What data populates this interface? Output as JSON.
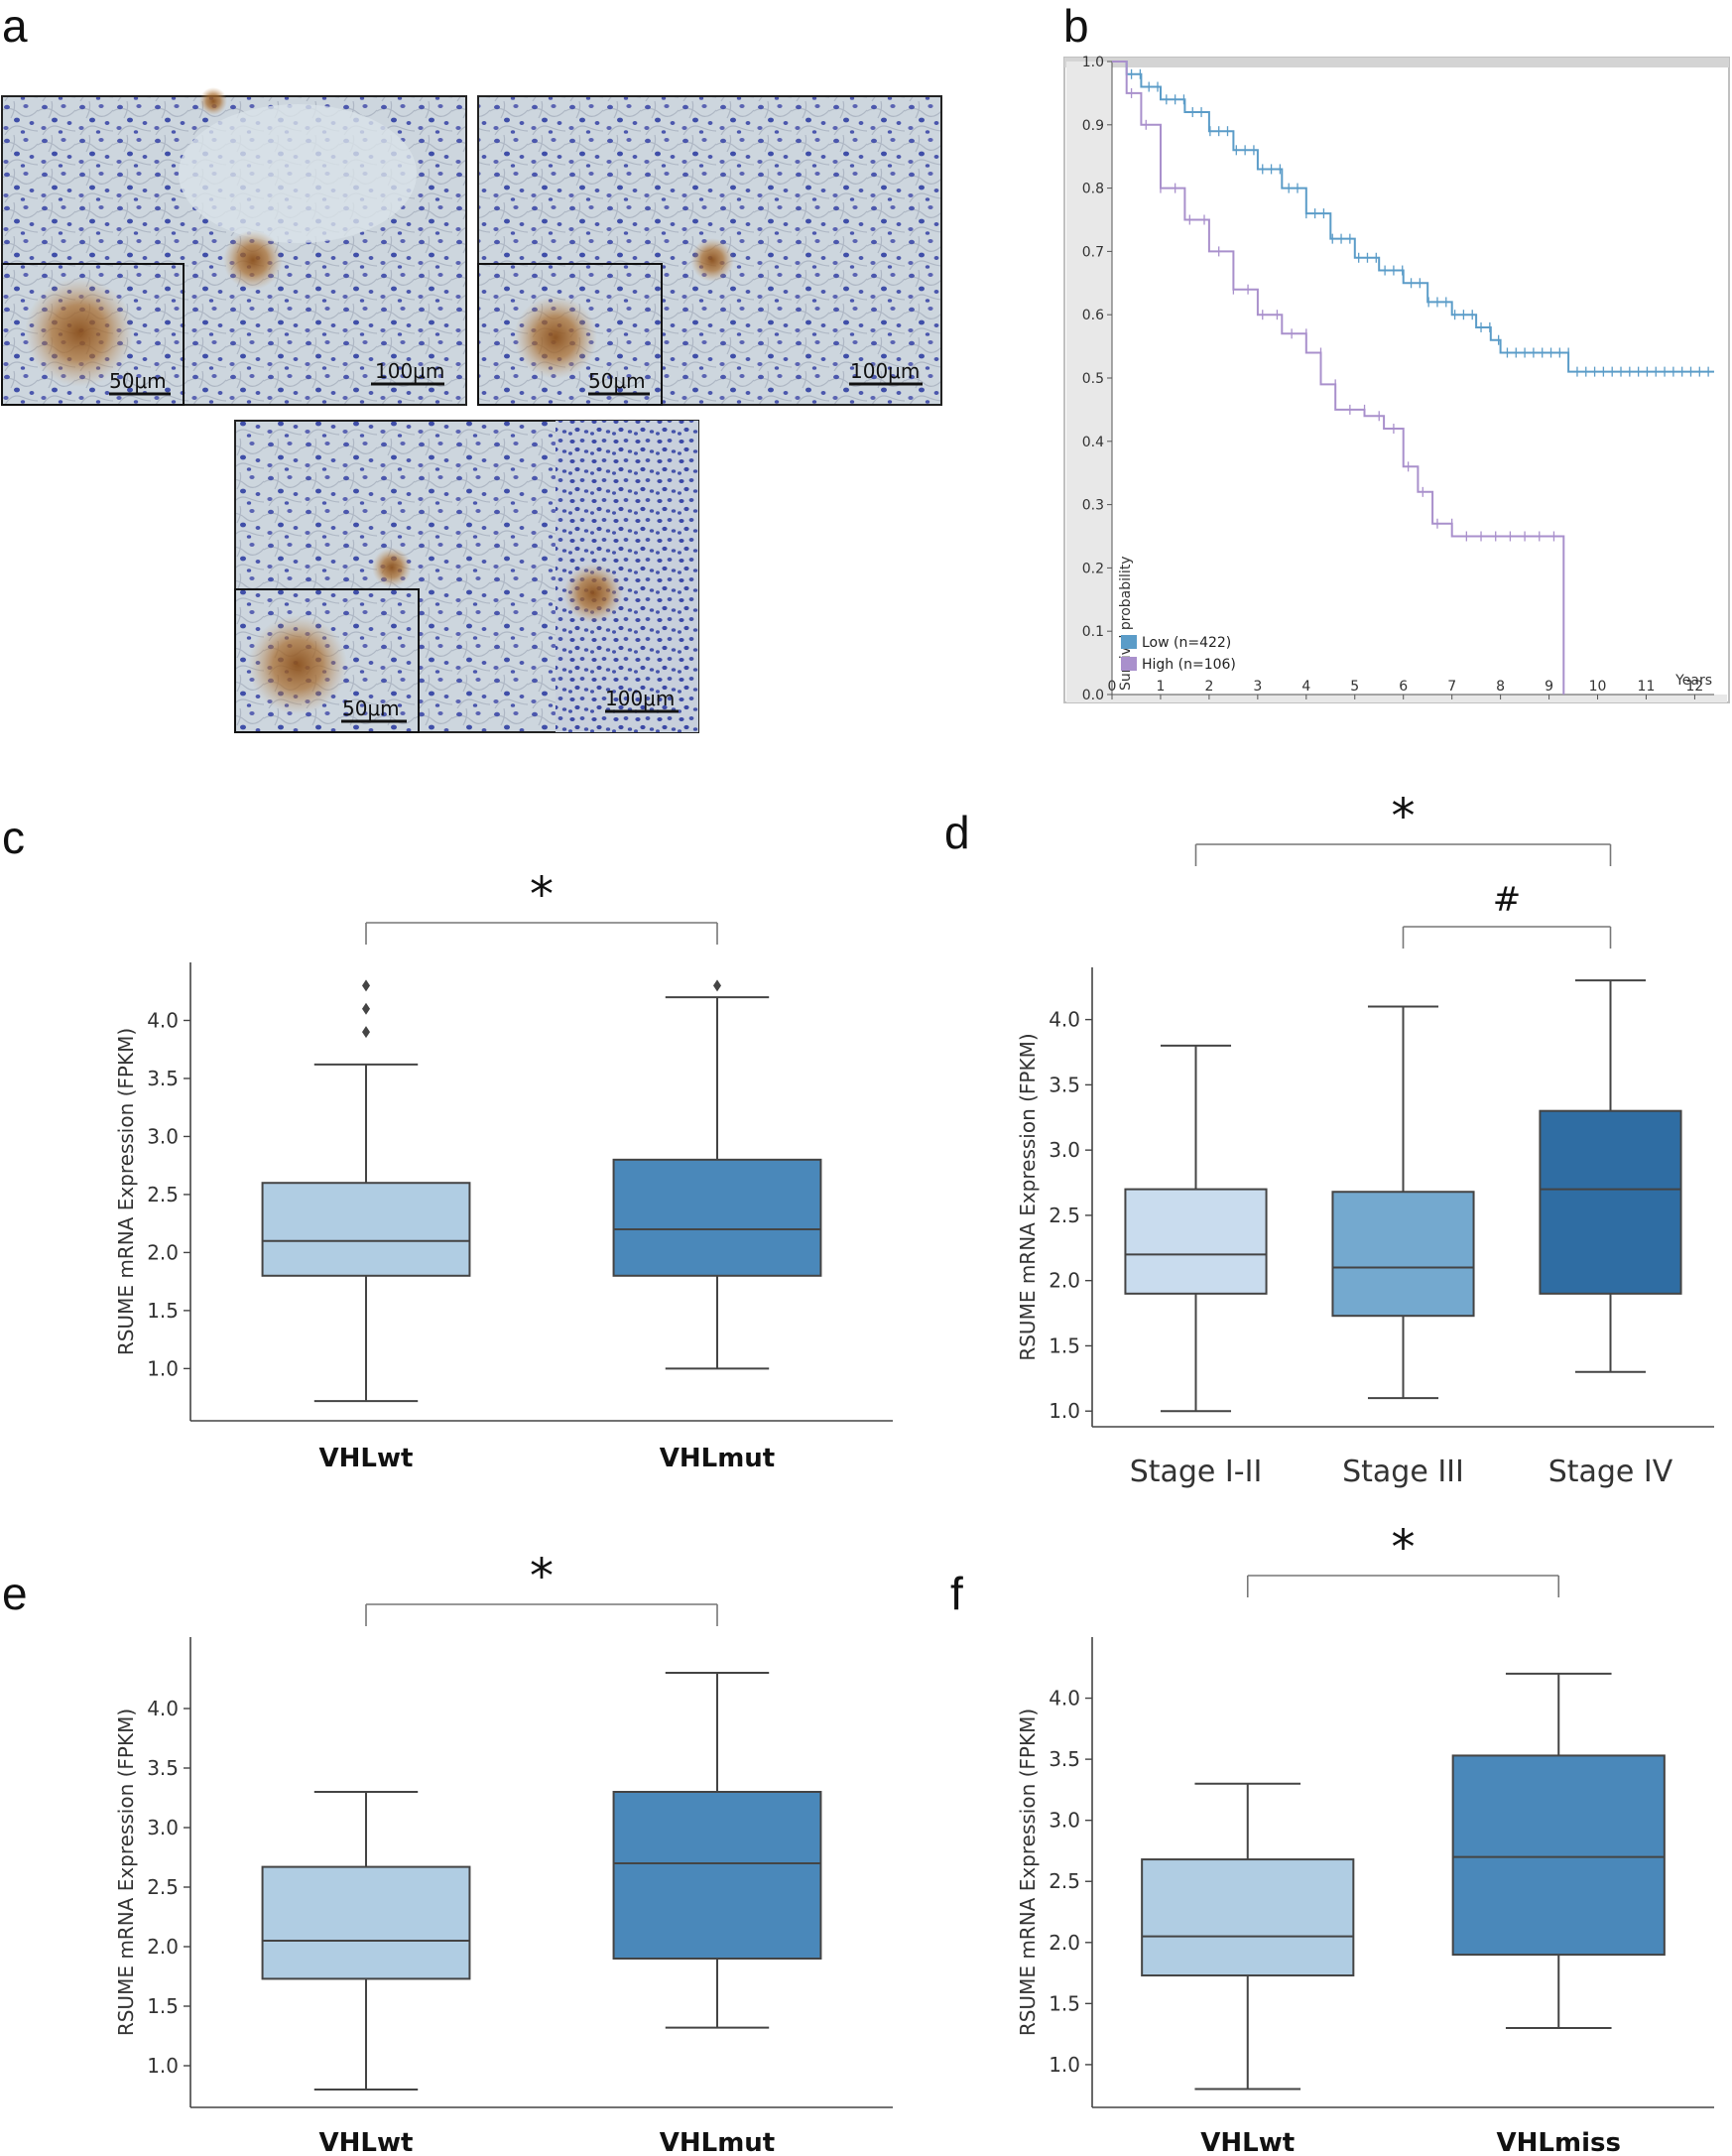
{
  "panel_labels": [
    "a",
    "b",
    "c",
    "d",
    "e",
    "f"
  ],
  "panel_a": {
    "images": [
      {
        "scale_main": "100μm",
        "scale_inset": "50μm"
      },
      {
        "scale_main": "100μm",
        "scale_inset": "50μm"
      },
      {
        "scale_main": "100μm",
        "scale_inset": "50μm"
      }
    ],
    "colors": {
      "background": "#cfd8df",
      "nuclei": "#3f4ea8",
      "stain": "#a86a2a"
    }
  },
  "chart_data": [
    {
      "panel": "b",
      "type": "line",
      "title": "",
      "xlabel": "Years",
      "ylabel": "Survival probability",
      "xlim": [
        0,
        12.4
      ],
      "ylim": [
        0,
        1.0
      ],
      "xticks": [
        "0",
        "1",
        "2",
        "3",
        "4",
        "5",
        "6",
        "7",
        "8",
        "9",
        "10",
        "11",
        "12"
      ],
      "yticks": [
        "0.0",
        "0.1",
        "0.2",
        "0.3",
        "0.4",
        "0.5",
        "0.6",
        "0.7",
        "0.8",
        "0.9",
        "1.0"
      ],
      "legend": [
        {
          "label": "Low (n=422)",
          "color": "#5b9cc8"
        },
        {
          "label": "High (n=106)",
          "color": "#a990cc"
        }
      ],
      "series": [
        {
          "name": "Low (n=422)",
          "color": "#5b9cc8",
          "points": [
            [
              0,
              1.0
            ],
            [
              0.3,
              0.98
            ],
            [
              0.6,
              0.96
            ],
            [
              1,
              0.94
            ],
            [
              1.5,
              0.92
            ],
            [
              2,
              0.89
            ],
            [
              2.5,
              0.86
            ],
            [
              3,
              0.83
            ],
            [
              3.5,
              0.8
            ],
            [
              4,
              0.76
            ],
            [
              4.5,
              0.72
            ],
            [
              5,
              0.69
            ],
            [
              5.5,
              0.67
            ],
            [
              6,
              0.65
            ],
            [
              6.5,
              0.62
            ],
            [
              7,
              0.6
            ],
            [
              7.5,
              0.58
            ],
            [
              7.8,
              0.56
            ],
            [
              8,
              0.54
            ],
            [
              9,
              0.54
            ],
            [
              9.3,
              0.54
            ],
            [
              9.4,
              0.51
            ],
            [
              12.4,
              0.51
            ]
          ]
        },
        {
          "name": "High (n=106)",
          "color": "#a990cc",
          "points": [
            [
              0,
              1.0
            ],
            [
              0.3,
              0.95
            ],
            [
              0.6,
              0.9
            ],
            [
              1,
              0.8
            ],
            [
              1.5,
              0.75
            ],
            [
              2,
              0.7
            ],
            [
              2.5,
              0.64
            ],
            [
              3,
              0.6
            ],
            [
              3.5,
              0.57
            ],
            [
              4,
              0.54
            ],
            [
              4.3,
              0.49
            ],
            [
              4.6,
              0.45
            ],
            [
              5.2,
              0.44
            ],
            [
              5.6,
              0.42
            ],
            [
              6,
              0.36
            ],
            [
              6.3,
              0.32
            ],
            [
              6.6,
              0.27
            ],
            [
              7,
              0.25
            ],
            [
              9.3,
              0.25
            ],
            [
              9.3,
              0.0
            ]
          ]
        }
      ]
    },
    {
      "panel": "c",
      "type": "box",
      "ylabel": "RSUME mRNA Expression (FPKM)",
      "ylim": [
        0.55,
        4.5
      ],
      "yticks": [
        1.0,
        1.5,
        2.0,
        2.5,
        3.0,
        3.5,
        4.0
      ],
      "categories": [
        "VHLwt",
        "VHLmut"
      ],
      "boxes": [
        {
          "min": 0.72,
          "q1": 1.8,
          "median": 2.1,
          "q3": 2.6,
          "max": 3.62,
          "outliers": [
            3.9,
            4.1,
            4.3
          ],
          "color": "#b0cde3"
        },
        {
          "min": 1.0,
          "q1": 1.8,
          "median": 2.2,
          "q3": 2.8,
          "max": 4.2,
          "outliers": [
            4.3
          ],
          "color": "#4a88ba"
        }
      ],
      "significance": [
        {
          "from": 0,
          "to": 1,
          "label": "*"
        }
      ]
    },
    {
      "panel": "d",
      "type": "box",
      "ylabel": "RSUME mRNA Expression (FPKM)",
      "ylim": [
        0.88,
        4.4
      ],
      "yticks": [
        1.0,
        1.5,
        2.0,
        2.5,
        3.0,
        3.5,
        4.0
      ],
      "categories": [
        "Stage I-II",
        "Stage III",
        "Stage IV"
      ],
      "boxes": [
        {
          "min": 1.0,
          "q1": 1.9,
          "median": 2.2,
          "q3": 2.7,
          "max": 3.8,
          "outliers": [],
          "color": "#c9dcee"
        },
        {
          "min": 1.1,
          "q1": 1.73,
          "median": 2.1,
          "q3": 2.68,
          "max": 4.1,
          "outliers": [],
          "color": "#74a9cf"
        },
        {
          "min": 1.3,
          "q1": 1.9,
          "median": 2.7,
          "q3": 3.3,
          "max": 4.3,
          "outliers": [],
          "color": "#2f6da3"
        }
      ],
      "significance": [
        {
          "from": 0,
          "to": 2,
          "label": "*"
        },
        {
          "from": 1,
          "to": 2,
          "label": "#"
        }
      ]
    },
    {
      "panel": "e",
      "type": "box",
      "ylabel": "RSUME mRNA Expression (FPKM)",
      "ylim": [
        0.65,
        4.6
      ],
      "yticks": [
        1.0,
        1.5,
        2.0,
        2.5,
        3.0,
        3.5,
        4.0
      ],
      "categories": [
        "VHLwt",
        "VHLmut"
      ],
      "boxes": [
        {
          "min": 0.8,
          "q1": 1.73,
          "median": 2.05,
          "q3": 2.67,
          "max": 3.3,
          "outliers": [],
          "color": "#b0cde3"
        },
        {
          "min": 1.32,
          "q1": 1.9,
          "median": 2.7,
          "q3": 3.3,
          "max": 4.3,
          "outliers": [],
          "color": "#4a88ba"
        }
      ],
      "significance": [
        {
          "from": 0,
          "to": 1,
          "label": "*"
        }
      ]
    },
    {
      "panel": "f",
      "type": "box",
      "ylabel": "RSUME mRNA Expression (FPKM)",
      "ylim": [
        0.65,
        4.5
      ],
      "yticks": [
        1.0,
        1.5,
        2.0,
        2.5,
        3.0,
        3.5,
        4.0
      ],
      "categories": [
        "VHLwt",
        "VHLmiss"
      ],
      "boxes": [
        {
          "min": 0.8,
          "q1": 1.73,
          "median": 2.05,
          "q3": 2.68,
          "max": 3.3,
          "outliers": [],
          "color": "#b0cde3"
        },
        {
          "min": 1.3,
          "q1": 1.9,
          "median": 2.7,
          "q3": 3.53,
          "max": 4.2,
          "outliers": [],
          "color": "#4a88ba"
        }
      ],
      "significance": [
        {
          "from": 0,
          "to": 1,
          "label": "*"
        }
      ]
    }
  ]
}
